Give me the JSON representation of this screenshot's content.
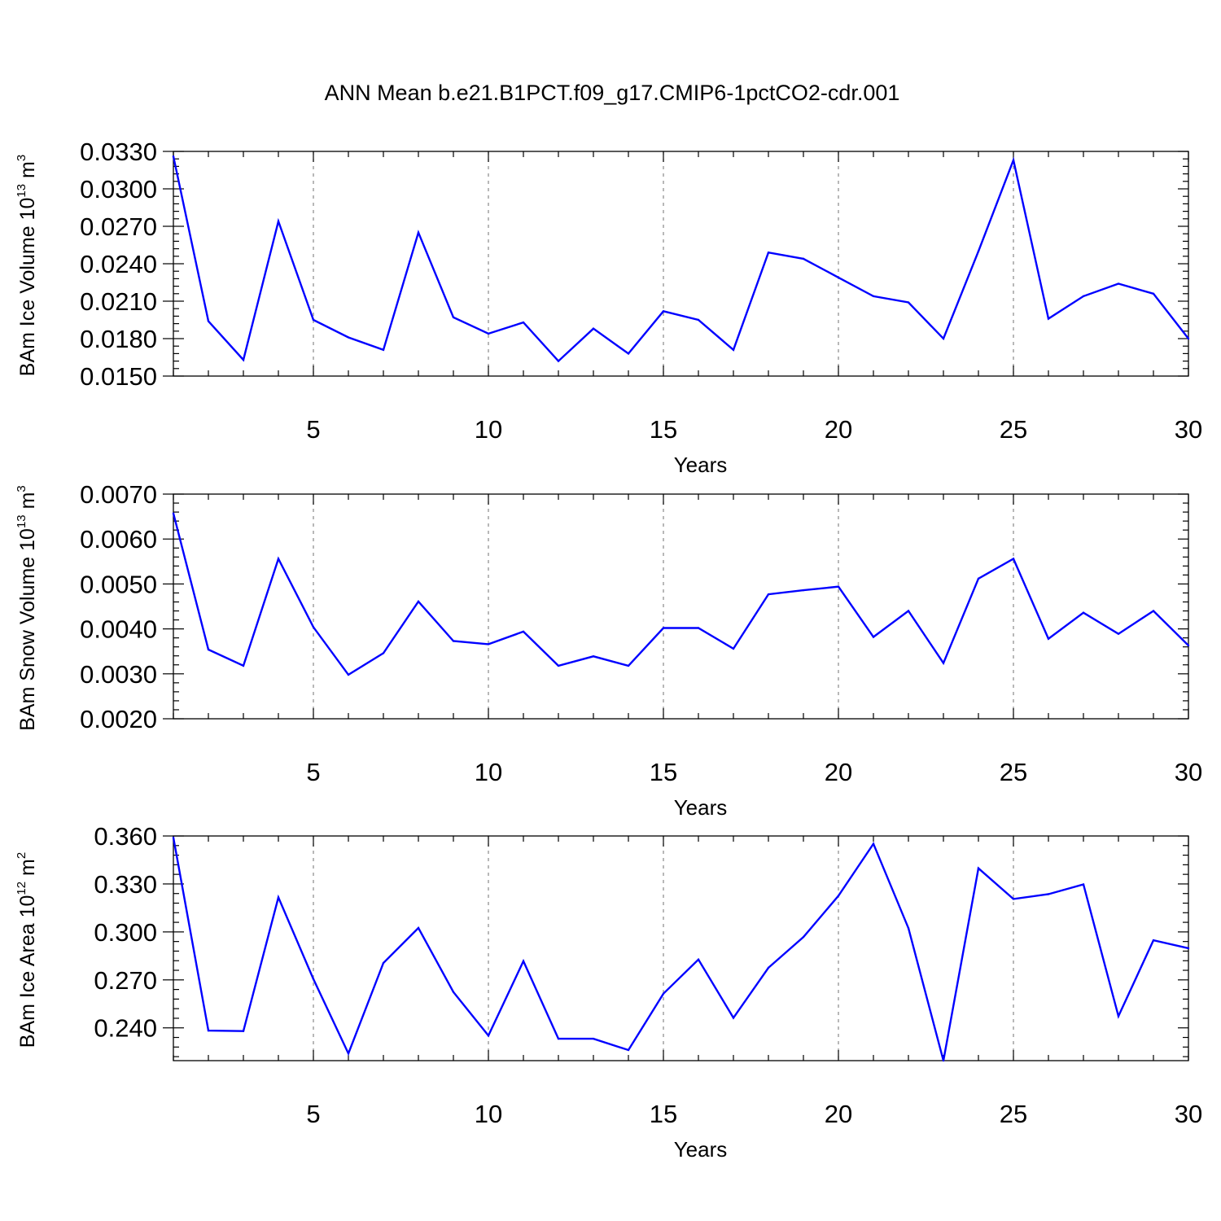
{
  "title": "ANN Mean b.e21.B1PCT.f09_g17.CMIP6-1pctCO2-cdr.001",
  "colors": {
    "line": "#0000ff",
    "axis": "#000000",
    "grid": "#888888"
  },
  "chart_data": [
    {
      "type": "line",
      "xlabel": "Years",
      "ylabel": {
        "text": "BAm Ice Volume 10",
        "exponent": "13",
        "unit": " m",
        "unit_exponent": "3"
      },
      "xlim": [
        1,
        30
      ],
      "ylim": [
        0.015,
        0.033
      ],
      "xticks": [
        5,
        10,
        15,
        20,
        25,
        30
      ],
      "xtick_labels": [
        "5",
        "10",
        "15",
        "20",
        "25",
        "30"
      ],
      "yticks": [
        0.015,
        0.018,
        0.021,
        0.024,
        0.027,
        0.03,
        0.033
      ],
      "ytick_labels": [
        "0.0150",
        "0.0180",
        "0.0210",
        "0.0240",
        "0.0270",
        "0.0300",
        "0.0330"
      ],
      "grid_x": true,
      "series": [
        {
          "name": "BAm Ice Volume",
          "x": [
            1,
            2,
            3,
            4,
            5,
            6,
            7,
            8,
            9,
            10,
            11,
            12,
            13,
            14,
            15,
            16,
            17,
            18,
            19,
            20,
            21,
            22,
            23,
            24,
            25,
            26,
            27,
            28,
            29,
            30
          ],
          "values": [
            0.0326,
            0.0194,
            0.0163,
            0.0274,
            0.0195,
            0.0181,
            0.0171,
            0.0265,
            0.0197,
            0.0184,
            0.0193,
            0.0162,
            0.0188,
            0.0168,
            0.0202,
            0.0195,
            0.0171,
            0.0249,
            0.0244,
            0.0229,
            0.0214,
            0.0209,
            0.018,
            0.025,
            0.0323,
            0.0196,
            0.0214,
            0.0224,
            0.0216,
            0.018
          ]
        }
      ]
    },
    {
      "type": "line",
      "xlabel": "Years",
      "ylabel": {
        "text": "BAm Snow Volume 10",
        "exponent": "13",
        "unit": " m",
        "unit_exponent": "3"
      },
      "xlim": [
        1,
        30
      ],
      "ylim": [
        0.002,
        0.007
      ],
      "xticks": [
        5,
        10,
        15,
        20,
        25,
        30
      ],
      "xtick_labels": [
        "5",
        "10",
        "15",
        "20",
        "25",
        "30"
      ],
      "yticks": [
        0.002,
        0.003,
        0.004,
        0.005,
        0.006,
        0.007
      ],
      "ytick_labels": [
        "0.0020",
        "0.0030",
        "0.0040",
        "0.0050",
        "0.0060",
        "0.0070"
      ],
      "grid_x": true,
      "series": [
        {
          "name": "BAm Snow Volume",
          "x": [
            1,
            2,
            3,
            4,
            5,
            6,
            7,
            8,
            9,
            10,
            11,
            12,
            13,
            14,
            15,
            16,
            17,
            18,
            19,
            20,
            21,
            22,
            23,
            24,
            25,
            26,
            27,
            28,
            29,
            30
          ],
          "values": [
            0.00657,
            0.00354,
            0.00318,
            0.00556,
            0.00404,
            0.00298,
            0.00346,
            0.00461,
            0.00373,
            0.00366,
            0.00394,
            0.00318,
            0.00339,
            0.00318,
            0.00402,
            0.00402,
            0.00356,
            0.00477,
            0.00486,
            0.00494,
            0.00382,
            0.0044,
            0.00324,
            0.00512,
            0.00556,
            0.00378,
            0.00436,
            0.00389,
            0.0044,
            0.00363
          ]
        }
      ]
    },
    {
      "type": "line",
      "xlabel": "Years",
      "ylabel": {
        "text": "BAm Ice Area 10",
        "exponent": "12",
        "unit": " m",
        "unit_exponent": "2"
      },
      "xlim": [
        1,
        30
      ],
      "ylim": [
        0.2195,
        0.36
      ],
      "xticks": [
        5,
        10,
        15,
        20,
        25,
        30
      ],
      "xtick_labels": [
        "5",
        "10",
        "15",
        "20",
        "25",
        "30"
      ],
      "yticks": [
        0.24,
        0.27,
        0.3,
        0.33,
        0.36
      ],
      "ytick_labels": [
        "0.240",
        "0.270",
        "0.300",
        "0.330",
        "0.360"
      ],
      "grid_x": true,
      "series": [
        {
          "name": "BAm Ice Area",
          "x": [
            1,
            2,
            3,
            4,
            5,
            6,
            7,
            8,
            9,
            10,
            11,
            12,
            13,
            14,
            15,
            16,
            17,
            18,
            19,
            20,
            21,
            22,
            23,
            24,
            25,
            26,
            27,
            28,
            29,
            30
          ],
          "values": [
            0.359,
            0.2383,
            0.238,
            0.3216,
            0.2705,
            0.224,
            0.2806,
            0.3025,
            0.2624,
            0.2352,
            0.2817,
            0.2332,
            0.2332,
            0.2261,
            0.2614,
            0.2827,
            0.2463,
            0.2776,
            0.2968,
            0.3226,
            0.3551,
            0.3024,
            0.2195,
            0.3398,
            0.3206,
            0.3236,
            0.3297,
            0.2473,
            0.2948,
            0.2898
          ]
        }
      ]
    }
  ]
}
